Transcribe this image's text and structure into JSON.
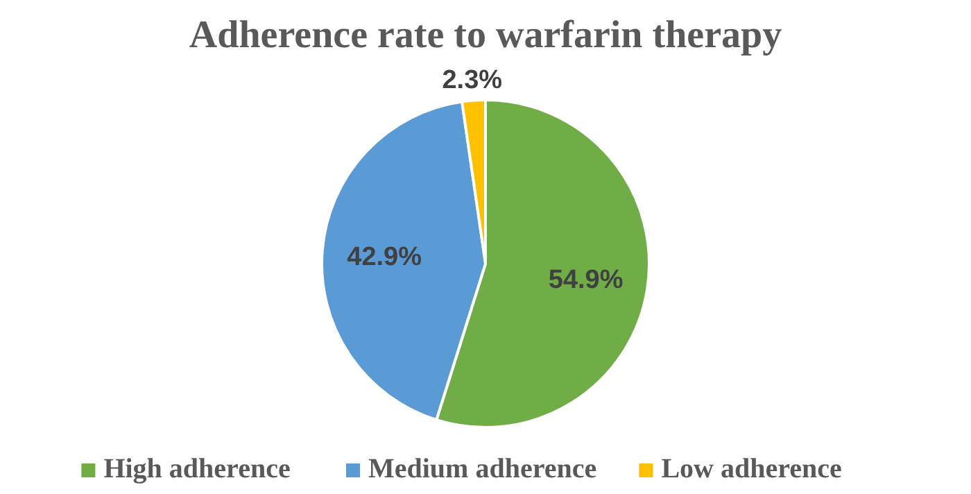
{
  "chart_data": {
    "type": "pie",
    "title": "Adherence rate to warfarin therapy",
    "categories": [
      "High adherence",
      "Medium adherence",
      "Low adherence"
    ],
    "values": [
      54.9,
      42.9,
      2.3
    ],
    "colors": [
      "#70ad47",
      "#5b9bd5",
      "#ffc000"
    ],
    "value_labels": [
      "54.9%",
      "42.9%",
      "2.3%"
    ],
    "legend": "bottom"
  }
}
